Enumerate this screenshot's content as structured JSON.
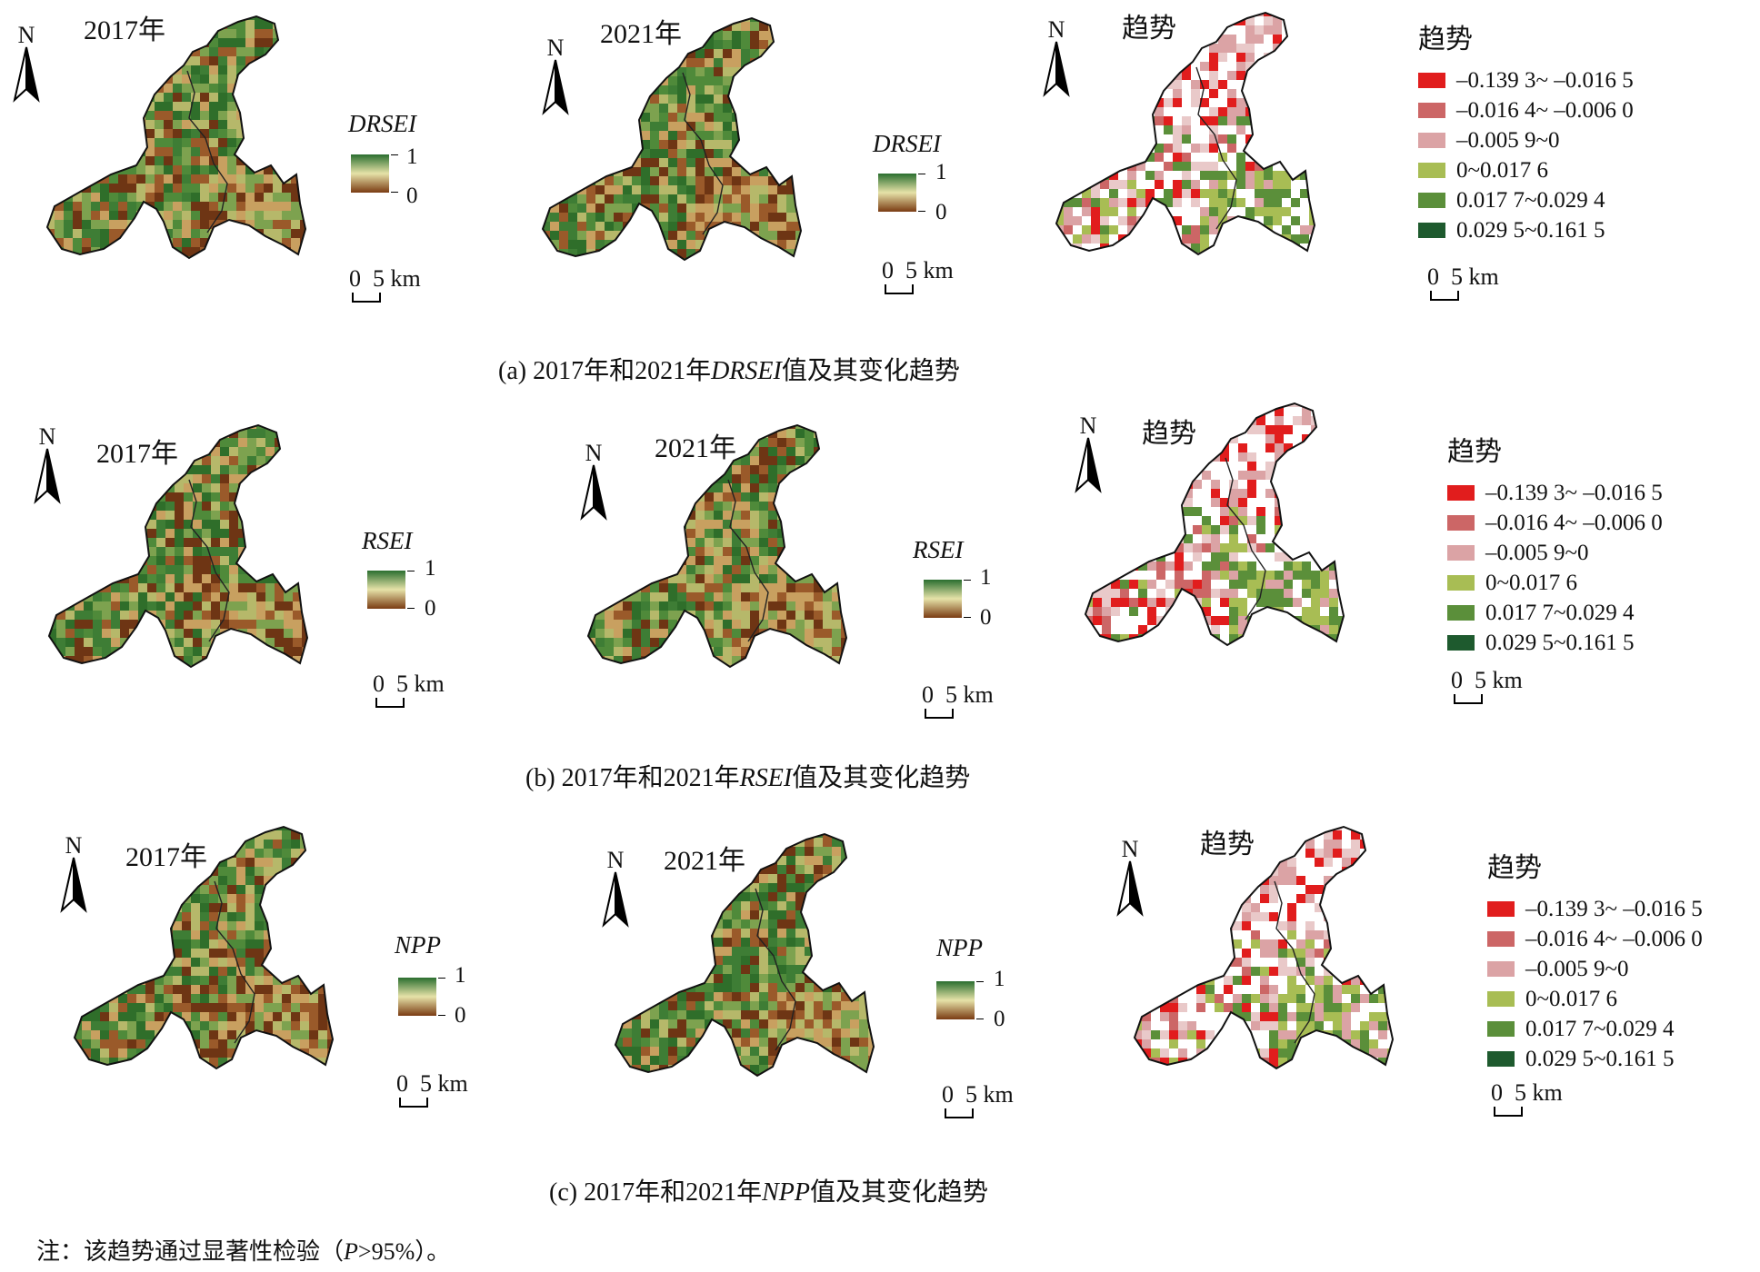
{
  "panels": [
    {
      "id": "a",
      "caption_prefix": "(a) 2017年和2021年",
      "caption_var": "DRSEI",
      "caption_suffix": "值及其变化趋势",
      "maps": [
        {
          "title": "2017年",
          "type": "value"
        },
        {
          "title": "2021年",
          "type": "value"
        },
        {
          "title": "趋势",
          "type": "trend"
        }
      ],
      "value_label": "DRSEI",
      "ramp_max": "1",
      "ramp_min": "0"
    },
    {
      "id": "b",
      "caption_prefix": "(b) 2017年和2021年",
      "caption_var": "RSEI",
      "caption_suffix": "值及其变化趋势",
      "maps": [
        {
          "title": "2017年",
          "type": "value"
        },
        {
          "title": "2021年",
          "type": "value"
        },
        {
          "title": "趋势",
          "type": "trend"
        }
      ],
      "value_label": "RSEI",
      "ramp_max": "1",
      "ramp_min": "0"
    },
    {
      "id": "c",
      "caption_prefix": "(c) 2017年和2021年",
      "caption_var": "NPP",
      "caption_suffix": "值及其变化趋势",
      "maps": [
        {
          "title": "2017年",
          "type": "value"
        },
        {
          "title": "2021年",
          "type": "value"
        },
        {
          "title": "趋势",
          "type": "trend"
        }
      ],
      "value_label": "NPP",
      "ramp_max": "1",
      "ramp_min": "0"
    }
  ],
  "north_label": "N",
  "scale_label": "0  5 km",
  "trend_legend": {
    "title": "趋势",
    "items": [
      {
        "label": "–0.139 3~ –0.016 5",
        "color": "#e11d1d"
      },
      {
        "label": "–0.016 4~ –0.006 0",
        "color": "#cc6666"
      },
      {
        "label": "–0.005 9~0",
        "color": "#dba3a5"
      },
      {
        "label": "0~0.017 6",
        "color": "#a8bd54"
      },
      {
        "label": "0.017 7~0.029 4",
        "color": "#5b8f3a"
      },
      {
        "label": "0.029 5~0.161 5",
        "color": "#1e5a2e"
      }
    ]
  },
  "ramp_colors": {
    "high": "#2a6e2f",
    "mid": "#e6e2a8",
    "low": "#7a3b12"
  },
  "note_prefix": "注：该趋势通过显著性检验（",
  "note_var": "P",
  "note_suffix": ">95%）。"
}
